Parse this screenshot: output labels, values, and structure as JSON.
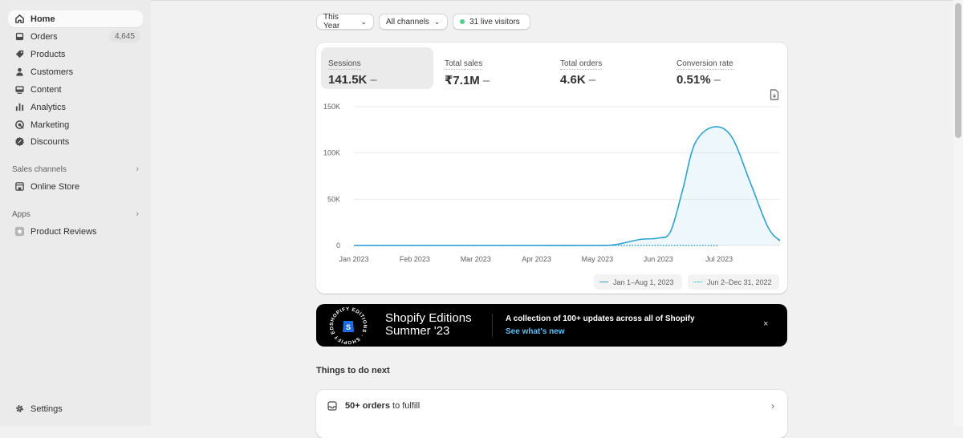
{
  "sidebar": {
    "items": [
      {
        "label": "Home",
        "icon": "home-icon",
        "active": true
      },
      {
        "label": "Orders",
        "icon": "inbox-icon",
        "badge": "4,645"
      },
      {
        "label": "Products",
        "icon": "tag-icon"
      },
      {
        "label": "Customers",
        "icon": "person-icon"
      },
      {
        "label": "Content",
        "icon": "content-icon"
      },
      {
        "label": "Analytics",
        "icon": "bar-chart-icon"
      },
      {
        "label": "Marketing",
        "icon": "target-icon"
      },
      {
        "label": "Discounts",
        "icon": "discount-icon"
      }
    ],
    "sales_channels": {
      "heading": "Sales channels",
      "items": [
        {
          "label": "Online Store",
          "icon": "store-icon"
        }
      ]
    },
    "apps": {
      "heading": "Apps",
      "items": [
        {
          "label": "Product Reviews",
          "icon": "star-app-icon"
        }
      ]
    },
    "settings": {
      "label": "Settings",
      "icon": "gear-icon"
    }
  },
  "filters": {
    "period": "This Year",
    "channels": "All channels",
    "live": "31 live visitors"
  },
  "metrics": [
    {
      "label": "Sessions",
      "value": "141.5K",
      "trend": "–"
    },
    {
      "label": "Total sales",
      "value": "₹7.1M",
      "trend": "–"
    },
    {
      "label": "Total orders",
      "value": "4.6K",
      "trend": "–"
    },
    {
      "label": "Conversion rate",
      "value": "0.51%",
      "trend": "–"
    }
  ],
  "chart_data": {
    "type": "line",
    "x": [
      "Jan 2023",
      "Feb 2023",
      "Mar 2023",
      "Apr 2023",
      "May 2023",
      "Jun 2023",
      "Jul 2023"
    ],
    "y_ticks": [
      "150K",
      "100K",
      "50K",
      "0"
    ],
    "ylim": [
      0,
      150000
    ],
    "series": [
      {
        "name": "Jan 1–Aug 1, 2023",
        "style": "solid",
        "color": "#2aa3d6",
        "points": [
          [
            0,
            0
          ],
          [
            1,
            0
          ],
          [
            2,
            0
          ],
          [
            3,
            0
          ],
          [
            4,
            0
          ],
          [
            4.3,
            1000
          ],
          [
            4.7,
            6500
          ],
          [
            5.0,
            8000
          ],
          [
            5.2,
            15000
          ],
          [
            5.4,
            60000
          ],
          [
            5.6,
            110000
          ],
          [
            5.9,
            128000
          ],
          [
            6.2,
            118000
          ],
          [
            6.5,
            70000
          ],
          [
            6.8,
            20000
          ],
          [
            7.0,
            5000
          ]
        ]
      },
      {
        "name": "Jun 2–Dec 31, 2022",
        "style": "dotted",
        "color": "#2aa3d6",
        "points": [
          [
            0,
            0
          ],
          [
            1,
            0
          ],
          [
            2,
            0
          ],
          [
            3,
            0
          ],
          [
            4,
            0
          ],
          [
            5,
            0
          ],
          [
            6,
            0
          ]
        ]
      }
    ],
    "grid": true,
    "legend": "bottom-right"
  },
  "banner": {
    "badge_text": "SHOPIFY EDITIONS",
    "title_line1": "Shopify Editions",
    "title_line2": "Summer '23",
    "message": "A collection of 100+ updates across all of Shopify",
    "link": "See what's new",
    "close": "×"
  },
  "todo": {
    "title": "Things to do next",
    "rows": [
      {
        "bold": "50+ orders",
        "rest": " to fulfill"
      }
    ]
  }
}
